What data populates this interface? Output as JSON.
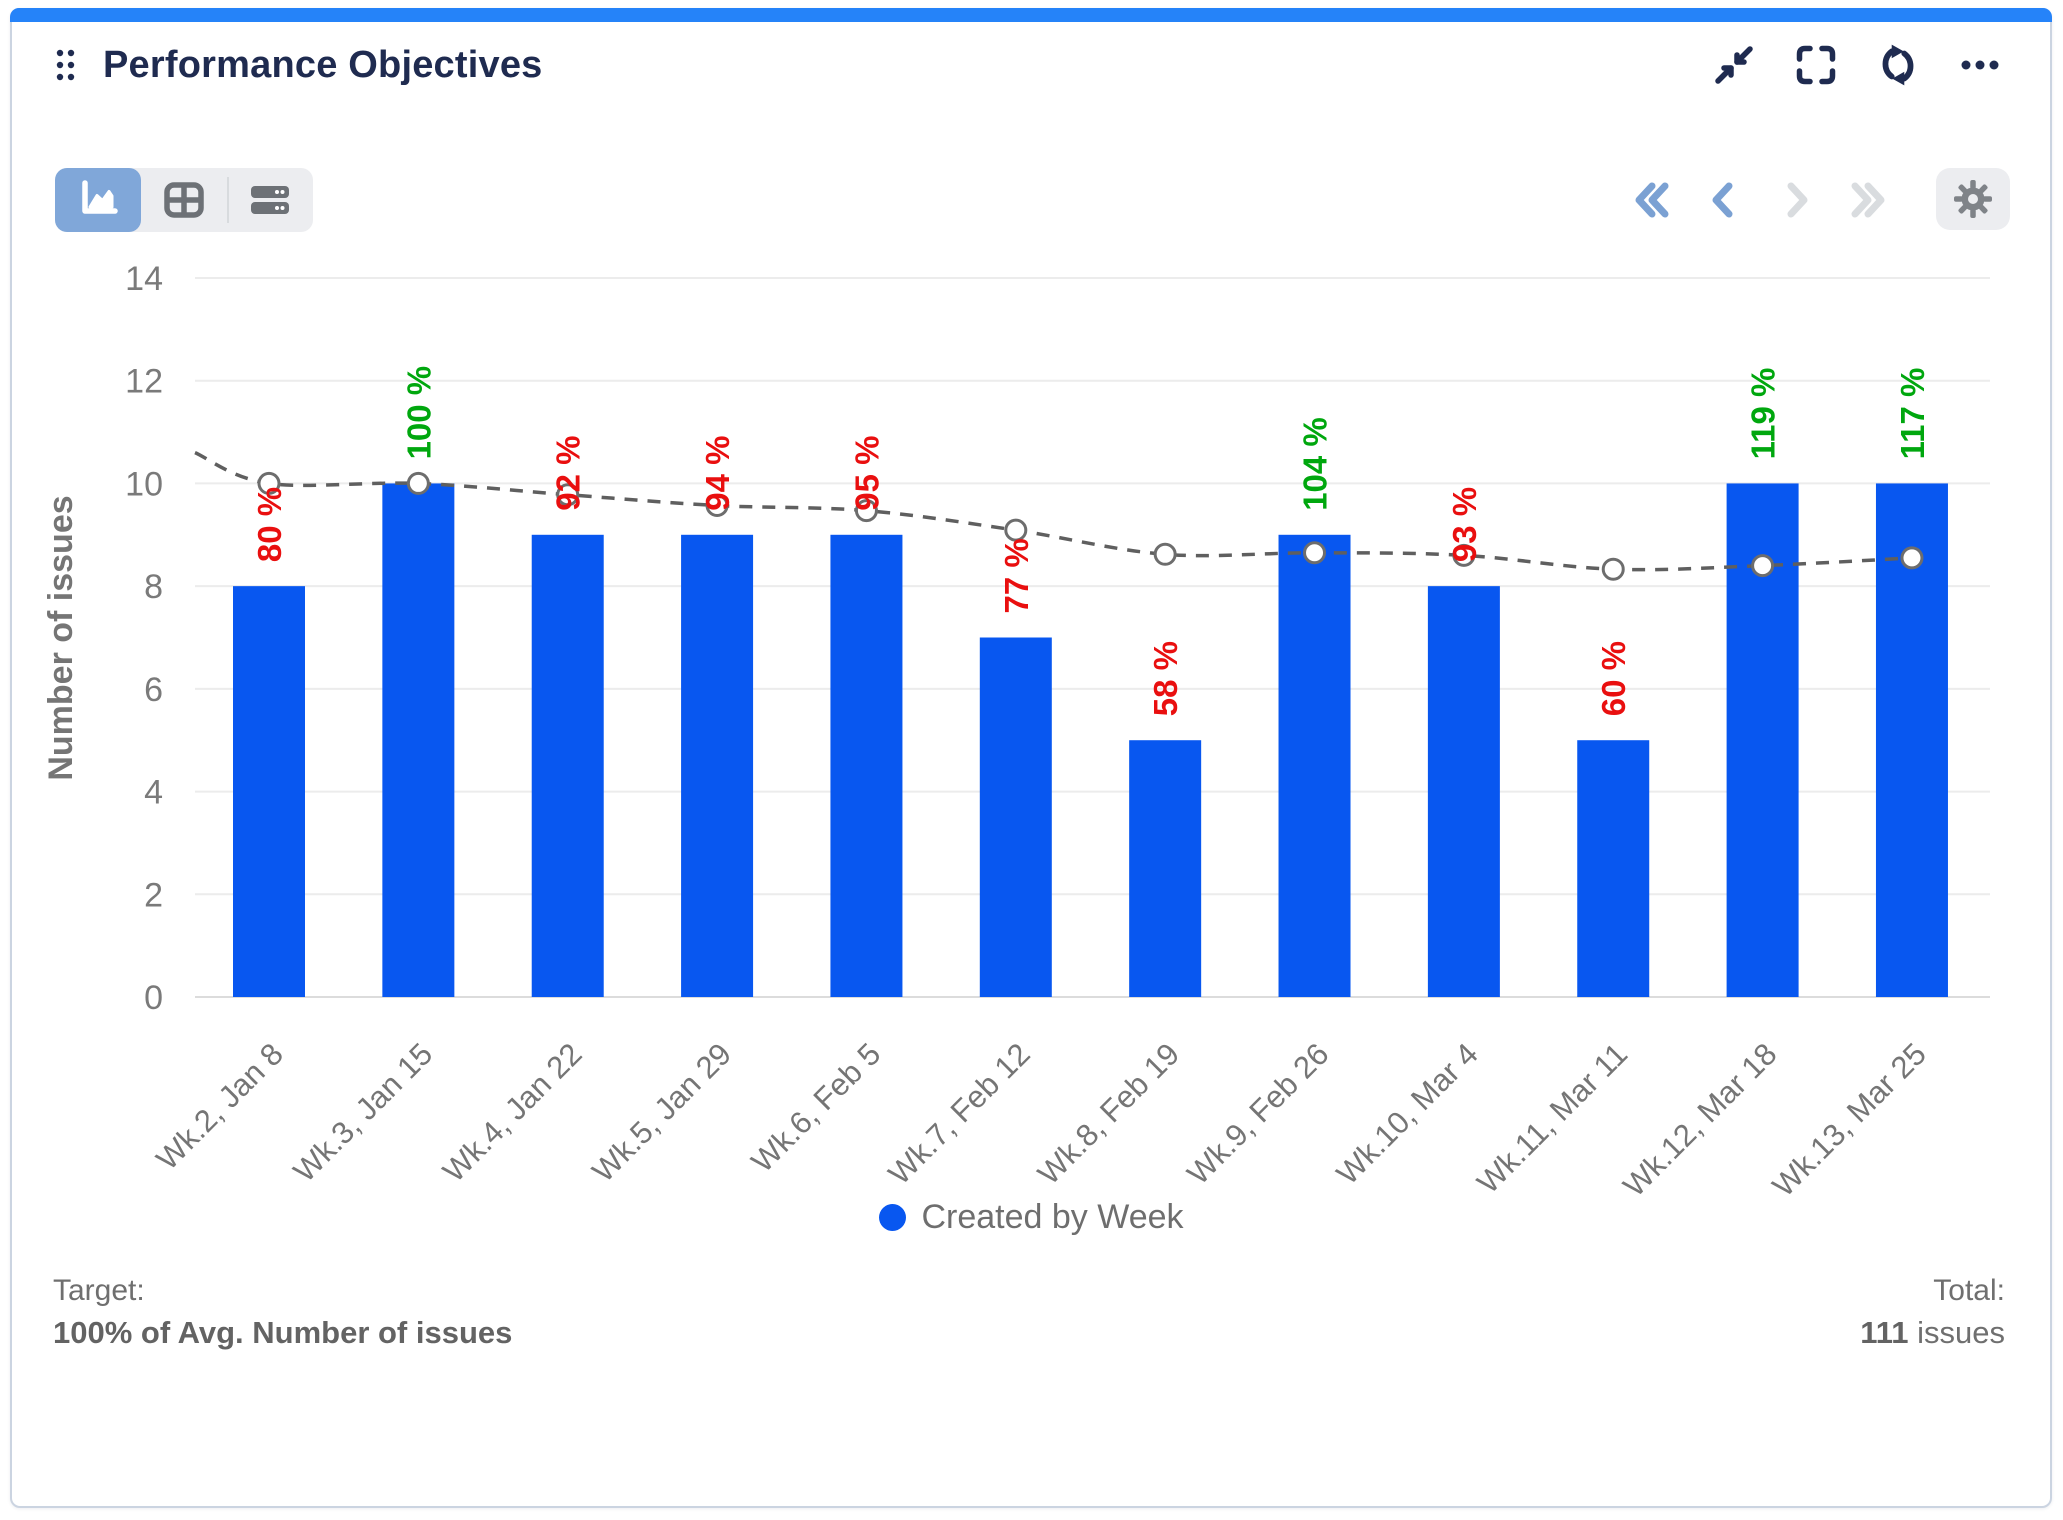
{
  "header": {
    "title": "Performance Objectives"
  },
  "colors": {
    "accent_strip": "#2583f9",
    "bar": "#0857f0",
    "trend_line": "#5f5f5f",
    "below_target": "#e90f0f",
    "met_target": "#00a70e"
  },
  "chart_data": {
    "type": "bar",
    "title": "",
    "categories": [
      "Wk.2, Jan 8",
      "Wk.3, Jan 15",
      "Wk.4, Jan 22",
      "Wk.5, Jan 29",
      "Wk.6, Feb 5",
      "Wk.7, Feb 12",
      "Wk.8, Feb 19",
      "Wk.9, Feb 26",
      "Wk.10, Mar 4",
      "Wk.11, Mar 11",
      "Wk.12, Mar 18",
      "Wk.13, Mar 25"
    ],
    "series": [
      {
        "name": "Created by Week",
        "type": "bar",
        "color": "#0857f0",
        "values": [
          8,
          10,
          9,
          9,
          9,
          7,
          5,
          9,
          8,
          5,
          10,
          10
        ]
      },
      {
        "name": "Target (100% of Avg. Number of issues)",
        "type": "line",
        "style": "dashed",
        "color": "#5f5f5f",
        "values": [
          10.0,
          10.0,
          9.78,
          9.57,
          9.47,
          9.09,
          8.62,
          8.65,
          8.6,
          8.33,
          8.4,
          8.55
        ],
        "lead_in_value": 10.6
      }
    ],
    "percent_labels": {
      "values": [
        80,
        100,
        92,
        94,
        95,
        77,
        58,
        104,
        93,
        60,
        119,
        117
      ],
      "suffix": " %",
      "below_target_color": "#e90f0f",
      "met_target_color": "#00a70e"
    },
    "xlabel": "",
    "ylabel": "Number of issues",
    "ylim": [
      0,
      14
    ],
    "yticks": [
      0,
      2,
      4,
      6,
      8,
      10,
      12,
      14
    ],
    "grid": true,
    "legend": {
      "label": "Created by Week",
      "position": "bottom"
    }
  },
  "footer": {
    "target_label": "Target:",
    "target_value": "100% of Avg. Number of issues",
    "total_label": "Total:",
    "total_value": "111",
    "total_unit": " issues"
  }
}
